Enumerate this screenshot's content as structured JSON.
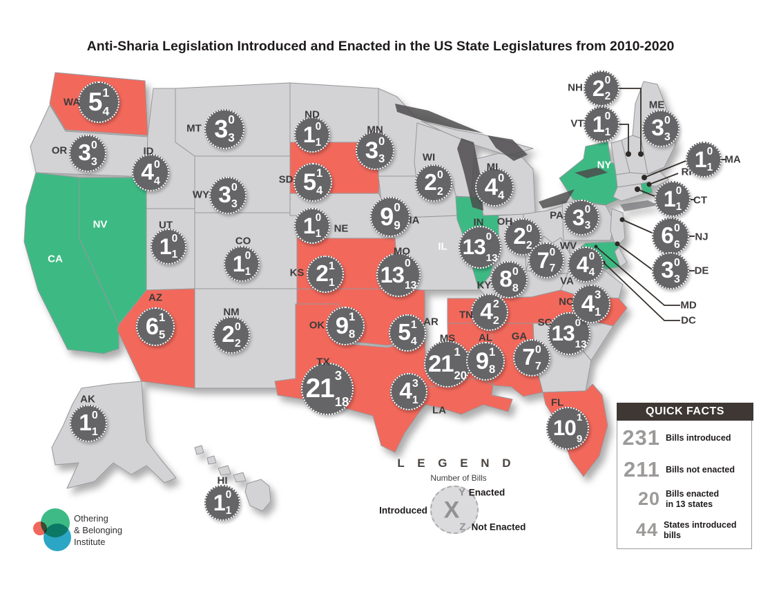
{
  "title": "Anti-Sharia Legislation Introduced and Enacted in the US State Legislatures from 2010-2020",
  "colors": {
    "enacted_state": "#F2695C",
    "no_bills_state": "#3CBA84",
    "introduced_state": "#D3D3D5",
    "state_border": "#97979A",
    "bubble_fill": "#656467",
    "bubble_text": "#FFFFFF",
    "label_dark": "#3E3B3C",
    "label_light": "#FFFFFF",
    "callout_line": "#332D28",
    "lake": "#4A484A",
    "facts_header_bg": "#3E3733",
    "facts_number": "#9C9A99",
    "legend_circle": "#DBDBDD",
    "legend_symbol": "#919193",
    "logo_green": "#3DBA85",
    "logo_blue": "#2BA6C4",
    "logo_red": "#F0685C"
  },
  "legend": {
    "heading": "L E G E N D",
    "subheading": "Number of Bills",
    "introduced_label": "Introduced",
    "introduced_symbol": "X",
    "enacted_symbol": "Y",
    "enacted_label": "Enacted",
    "not_enacted_symbol": "Z",
    "not_enacted_label": "Not Enacted"
  },
  "quick_facts": {
    "heading": "QUICK FACTS",
    "facts": [
      {
        "value": "231",
        "label": "Bills introduced"
      },
      {
        "value": "211",
        "label": "Bills not enacted"
      },
      {
        "value": "20",
        "label": "Bills enacted\nin 13 states"
      },
      {
        "value": "44",
        "label": "States introduced bills"
      }
    ]
  },
  "logo": {
    "line1": "Othering",
    "line2": "& Belonging",
    "line3": "Institute"
  },
  "states": [
    {
      "code": "WA",
      "introduced": 5,
      "enacted": 1,
      "not_enacted": 4,
      "status": "enacted"
    },
    {
      "code": "OR",
      "introduced": 3,
      "enacted": 0,
      "not_enacted": 3,
      "status": "introduced"
    },
    {
      "code": "CA",
      "introduced": null,
      "enacted": null,
      "not_enacted": null,
      "status": "none"
    },
    {
      "code": "NV",
      "introduced": null,
      "enacted": null,
      "not_enacted": null,
      "status": "none"
    },
    {
      "code": "ID",
      "introduced": 4,
      "enacted": 0,
      "not_enacted": 4,
      "status": "introduced"
    },
    {
      "code": "MT",
      "introduced": 3,
      "enacted": 0,
      "not_enacted": 3,
      "status": "introduced"
    },
    {
      "code": "WY",
      "introduced": 3,
      "enacted": 0,
      "not_enacted": 3,
      "status": "introduced"
    },
    {
      "code": "UT",
      "introduced": 1,
      "enacted": 0,
      "not_enacted": 1,
      "status": "introduced"
    },
    {
      "code": "CO",
      "introduced": 1,
      "enacted": 0,
      "not_enacted": 1,
      "status": "introduced"
    },
    {
      "code": "AZ",
      "introduced": 6,
      "enacted": 1,
      "not_enacted": 5,
      "status": "enacted"
    },
    {
      "code": "NM",
      "introduced": 2,
      "enacted": 0,
      "not_enacted": 2,
      "status": "introduced"
    },
    {
      "code": "ND",
      "introduced": 1,
      "enacted": 0,
      "not_enacted": 1,
      "status": "introduced"
    },
    {
      "code": "SD",
      "introduced": 5,
      "enacted": 1,
      "not_enacted": 4,
      "status": "enacted"
    },
    {
      "code": "NE",
      "introduced": 1,
      "enacted": 0,
      "not_enacted": 1,
      "status": "introduced"
    },
    {
      "code": "KS",
      "introduced": 2,
      "enacted": 1,
      "not_enacted": 1,
      "status": "enacted"
    },
    {
      "code": "OK",
      "introduced": 9,
      "enacted": 1,
      "not_enacted": 8,
      "status": "enacted"
    },
    {
      "code": "TX",
      "introduced": 21,
      "enacted": 3,
      "not_enacted": 18,
      "status": "enacted"
    },
    {
      "code": "MN",
      "introduced": 3,
      "enacted": 0,
      "not_enacted": 3,
      "status": "introduced"
    },
    {
      "code": "IA",
      "introduced": 9,
      "enacted": 0,
      "not_enacted": 9,
      "status": "introduced"
    },
    {
      "code": "MO",
      "introduced": 13,
      "enacted": 0,
      "not_enacted": 13,
      "status": "introduced"
    },
    {
      "code": "AR",
      "introduced": 5,
      "enacted": 1,
      "not_enacted": 4,
      "status": "enacted"
    },
    {
      "code": "LA",
      "introduced": 4,
      "enacted": 3,
      "not_enacted": 1,
      "status": "enacted"
    },
    {
      "code": "WI",
      "introduced": 2,
      "enacted": 0,
      "not_enacted": 2,
      "status": "introduced"
    },
    {
      "code": "IL",
      "introduced": null,
      "enacted": null,
      "not_enacted": null,
      "status": "none"
    },
    {
      "code": "MI",
      "introduced": 4,
      "enacted": 0,
      "not_enacted": 4,
      "status": "introduced"
    },
    {
      "code": "IN",
      "introduced": 13,
      "enacted": 0,
      "not_enacted": 13,
      "status": "introduced"
    },
    {
      "code": "OH",
      "introduced": 2,
      "enacted": 0,
      "not_enacted": 2,
      "status": "introduced"
    },
    {
      "code": "KY",
      "introduced": 8,
      "enacted": 0,
      "not_enacted": 8,
      "status": "introduced"
    },
    {
      "code": "TN",
      "introduced": 4,
      "enacted": 2,
      "not_enacted": 2,
      "status": "enacted"
    },
    {
      "code": "MS",
      "introduced": 21,
      "enacted": 1,
      "not_enacted": 20,
      "status": "enacted"
    },
    {
      "code": "AL",
      "introduced": 9,
      "enacted": 1,
      "not_enacted": 8,
      "status": "enacted"
    },
    {
      "code": "GA",
      "introduced": 7,
      "enacted": 0,
      "not_enacted": 7,
      "status": "introduced"
    },
    {
      "code": "FL",
      "introduced": 10,
      "enacted": 1,
      "not_enacted": 9,
      "status": "enacted"
    },
    {
      "code": "SC",
      "introduced": 13,
      "enacted": 0,
      "not_enacted": 13,
      "status": "introduced"
    },
    {
      "code": "NC",
      "introduced": 4,
      "enacted": 3,
      "not_enacted": 1,
      "status": "enacted"
    },
    {
      "code": "VA",
      "introduced": 4,
      "enacted": 0,
      "not_enacted": 4,
      "status": "introduced"
    },
    {
      "code": "WV",
      "introduced": 7,
      "enacted": 0,
      "not_enacted": 7,
      "status": "introduced"
    },
    {
      "code": "PA",
      "introduced": 3,
      "enacted": 0,
      "not_enacted": 3,
      "status": "introduced"
    },
    {
      "code": "NY",
      "introduced": null,
      "enacted": null,
      "not_enacted": null,
      "status": "none"
    },
    {
      "code": "NJ",
      "introduced": 6,
      "enacted": 0,
      "not_enacted": 6,
      "status": "introduced"
    },
    {
      "code": "DE",
      "introduced": 3,
      "enacted": 0,
      "not_enacted": 3,
      "status": "introduced"
    },
    {
      "code": "MD",
      "introduced": null,
      "enacted": null,
      "not_enacted": null,
      "status": "none"
    },
    {
      "code": "DC",
      "introduced": null,
      "enacted": null,
      "not_enacted": null,
      "status": "none"
    },
    {
      "code": "CT",
      "introduced": 1,
      "enacted": 0,
      "not_enacted": 1,
      "status": "introduced"
    },
    {
      "code": "RI",
      "introduced": null,
      "enacted": null,
      "not_enacted": null,
      "status": "none"
    },
    {
      "code": "MA",
      "introduced": 1,
      "enacted": 0,
      "not_enacted": 1,
      "status": "introduced"
    },
    {
      "code": "VT",
      "introduced": 1,
      "enacted": 0,
      "not_enacted": 1,
      "status": "introduced"
    },
    {
      "code": "NH",
      "introduced": 2,
      "enacted": 0,
      "not_enacted": 2,
      "status": "introduced"
    },
    {
      "code": "ME",
      "introduced": 3,
      "enacted": 0,
      "not_enacted": 3,
      "status": "introduced"
    },
    {
      "code": "AK",
      "introduced": 1,
      "enacted": 0,
      "not_enacted": 1,
      "status": "introduced"
    },
    {
      "code": "HI",
      "introduced": 1,
      "enacted": 0,
      "not_enacted": 1,
      "status": "introduced"
    }
  ]
}
